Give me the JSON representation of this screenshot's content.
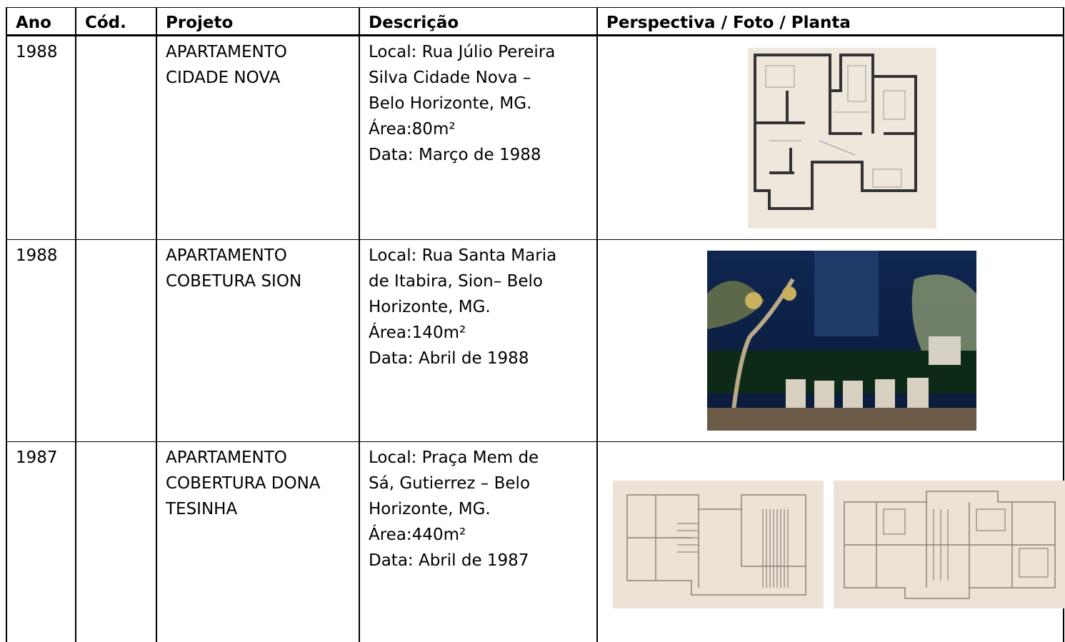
{
  "table": {
    "header": [
      "Ano",
      "Cód.",
      "Projeto",
      "Descrição",
      "Perspectiva / Foto / Planta"
    ],
    "rows": [
      {
        "year": "1988",
        "project": [
          "APARTAMENTO",
          "CIDADE NOVA"
        ],
        "description": [
          "Local: Rua Júlio Pereira",
          "Silva Cidade Nova –",
          "Belo Horizonte, MG.",
          "Área:80m²",
          "Data: Março de 1988"
        ]
      },
      {
        "year": "1988",
        "project": [
          "APARTAMENTO",
          "COBETURA SION"
        ],
        "description": [
          "Local: Rua Santa Maria",
          "de Itabira, Sion– Belo",
          "Horizonte, MG.",
          "Área:140m²",
          "Data: Abril de 1988"
        ]
      },
      {
        "year": "1987",
        "project": [
          "APARTAMENTO",
          "COBERTURA DONA",
          "TESINHA"
        ],
        "description": [
          "Local: Praça Mem de",
          "Sá, Gutierrez – Belo",
          "Horizonte, MG.",
          "Área:440m²",
          "Data: Abril de 1987"
        ]
      }
    ]
  }
}
